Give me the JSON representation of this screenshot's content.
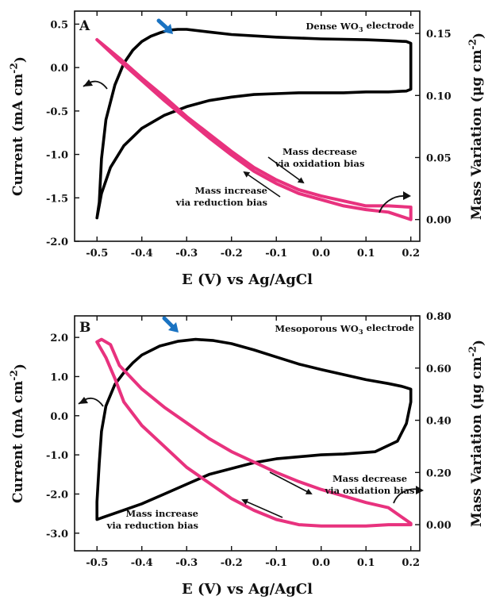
{
  "colors": {
    "current_line": "#000000",
    "mass_line": "#e8327e",
    "marker_arrow": "#1a73c2"
  },
  "chart_data": [
    {
      "type": "line",
      "panel_label": "A",
      "electrode_label": {
        "pre": "Dense WO",
        "sub": "3",
        "post": " electrode"
      },
      "xlabel": "E (V) vs Ag/AgCl",
      "ylabel_left": {
        "pre": "Current (mA cm",
        "sup": "-2",
        "post": ")"
      },
      "ylabel_right": {
        "pre": "Mass Variation (μg cm",
        "sup": "-2",
        "post": ")"
      },
      "xlim": [
        -0.55,
        0.22
      ],
      "ylim_left": [
        -2.0,
        0.65
      ],
      "ylim_right": [
        -0.0175,
        0.168
      ],
      "xticks": [
        -0.5,
        -0.4,
        -0.3,
        -0.2,
        -0.1,
        0.0,
        0.1,
        0.2
      ],
      "xtick_labels": [
        "-0.5",
        "-0.4",
        "-0.3",
        "-0.2",
        "-0.1",
        "0.0",
        "0.1",
        "0.2"
      ],
      "yticks_left": [
        -2.0,
        -1.5,
        -1.0,
        -0.5,
        0.0,
        0.5
      ],
      "ytick_labels_left": [
        "-2.0",
        "-1.5",
        "-1.0",
        "-0.5",
        "0.0",
        "0.5"
      ],
      "yticks_right": [
        0.0,
        0.05,
        0.1,
        0.15
      ],
      "ytick_labels_right": [
        "0.00",
        "0.05",
        "0.10",
        "0.15"
      ],
      "series": [
        {
          "axis": "left",
          "x": [
            -0.5,
            -0.495,
            -0.49,
            -0.48,
            -0.46,
            -0.44,
            -0.42,
            -0.4,
            -0.38,
            -0.36,
            -0.34,
            -0.32,
            -0.3,
            -0.25,
            -0.2,
            -0.1,
            0.0,
            0.1,
            0.15,
            0.19,
            0.2,
            0.2,
            0.19,
            0.15,
            0.1,
            0.05,
            0.0,
            -0.05,
            -0.1,
            -0.15,
            -0.2,
            -0.25,
            -0.3,
            -0.35,
            -0.4,
            -0.44,
            -0.47,
            -0.49,
            -0.5
          ],
          "y": [
            -1.73,
            -1.55,
            -1.05,
            -0.6,
            -0.2,
            0.05,
            0.2,
            0.3,
            0.36,
            0.4,
            0.43,
            0.44,
            0.44,
            0.41,
            0.38,
            0.35,
            0.33,
            0.32,
            0.31,
            0.3,
            0.28,
            -0.25,
            -0.27,
            -0.28,
            -0.28,
            -0.29,
            -0.29,
            -0.29,
            -0.3,
            -0.31,
            -0.34,
            -0.38,
            -0.45,
            -0.55,
            -0.7,
            -0.9,
            -1.15,
            -1.45,
            -1.73
          ]
        },
        {
          "axis": "right",
          "x": [
            -0.5,
            -0.45,
            -0.4,
            -0.35,
            -0.3,
            -0.25,
            -0.2,
            -0.15,
            -0.1,
            -0.05,
            0.0,
            0.05,
            0.1,
            0.15,
            0.2,
            0.2,
            0.15,
            0.1,
            0.05,
            0.0,
            -0.05,
            -0.1,
            -0.15,
            -0.2,
            -0.25,
            -0.3,
            -0.35,
            -0.4,
            -0.45,
            -0.5
          ],
          "y": [
            0.145,
            0.128,
            0.112,
            0.096,
            0.081,
            0.066,
            0.052,
            0.039,
            0.029,
            0.021,
            0.016,
            0.011,
            0.008,
            0.006,
            0.0,
            0.01,
            0.011,
            0.011,
            0.015,
            0.019,
            0.024,
            0.032,
            0.042,
            0.055,
            0.069,
            0.083,
            0.099,
            0.114,
            0.13,
            0.145
          ]
        }
      ],
      "annotations": [
        {
          "lines": [
            "Mass decrease",
            "via oxidation bias"
          ]
        },
        {
          "lines": [
            "Mass increase",
            "via reduction bias"
          ]
        }
      ]
    },
    {
      "type": "line",
      "panel_label": "B",
      "electrode_label": {
        "pre": "Mesoporous WO",
        "sub": "3",
        "post": " electrode"
      },
      "xlabel": "E (V) vs Ag/AgCl",
      "ylabel_left": {
        "pre": "Current (mA cm",
        "sup": "-2",
        "post": ")"
      },
      "ylabel_right": {
        "pre": "Mass Variation (μg cm",
        "sup": "-2",
        "post": ")"
      },
      "xlim": [
        -0.55,
        0.22
      ],
      "ylim_left": [
        -3.45,
        2.55
      ],
      "ylim_right": [
        -0.1,
        0.8
      ],
      "xticks": [
        -0.5,
        -0.4,
        -0.3,
        -0.2,
        -0.1,
        0.0,
        0.1,
        0.2
      ],
      "xtick_labels": [
        "-0.5",
        "-0.4",
        "-0.3",
        "-0.2",
        "-0.1",
        "0.0",
        "0.1",
        "0.2"
      ],
      "yticks_left": [
        -3.0,
        -2.0,
        -1.0,
        0.0,
        1.0,
        2.0
      ],
      "ytick_labels_left": [
        "-3.0",
        "-2.0",
        "-1.0",
        "0.0",
        "1.0",
        "2.0"
      ],
      "yticks_right": [
        0.0,
        0.2,
        0.4,
        0.6,
        0.8
      ],
      "ytick_labels_right": [
        "0.00",
        "0.20",
        "0.40",
        "0.60",
        "0.80"
      ],
      "series": [
        {
          "axis": "left",
          "x": [
            -0.5,
            -0.5,
            -0.495,
            -0.49,
            -0.48,
            -0.46,
            -0.44,
            -0.42,
            -0.4,
            -0.36,
            -0.32,
            -0.28,
            -0.24,
            -0.2,
            -0.15,
            -0.1,
            -0.05,
            0.0,
            0.05,
            0.1,
            0.15,
            0.18,
            0.2,
            0.2,
            0.19,
            0.17,
            0.12,
            0.05,
            0.0,
            -0.05,
            -0.1,
            -0.15,
            -0.2,
            -0.25,
            -0.3,
            -0.35,
            -0.4,
            -0.45,
            -0.5
          ],
          "y": [
            -2.65,
            -2.2,
            -1.2,
            -0.4,
            0.25,
            0.8,
            1.1,
            1.35,
            1.55,
            1.78,
            1.9,
            1.95,
            1.92,
            1.84,
            1.68,
            1.5,
            1.32,
            1.18,
            1.05,
            0.92,
            0.82,
            0.75,
            0.68,
            0.35,
            -0.2,
            -0.65,
            -0.92,
            -0.98,
            -1.0,
            -1.05,
            -1.1,
            -1.2,
            -1.35,
            -1.5,
            -1.75,
            -2.0,
            -2.25,
            -2.45,
            -2.65
          ]
        },
        {
          "axis": "right",
          "x": [
            -0.5,
            -0.49,
            -0.47,
            -0.45,
            -0.4,
            -0.35,
            -0.3,
            -0.25,
            -0.2,
            -0.15,
            -0.1,
            -0.05,
            0.0,
            0.05,
            0.1,
            0.15,
            0.2,
            0.2,
            0.15,
            0.1,
            0.05,
            0.0,
            -0.05,
            -0.1,
            -0.15,
            -0.2,
            -0.25,
            -0.3,
            -0.35,
            -0.4,
            -0.44,
            -0.46,
            -0.48,
            -0.5
          ],
          "y": [
            0.7,
            0.71,
            0.69,
            0.61,
            0.52,
            0.45,
            0.39,
            0.33,
            0.28,
            0.24,
            0.2,
            0.165,
            0.135,
            0.11,
            0.085,
            0.065,
            0.005,
            0.0,
            0.0,
            -0.005,
            -0.005,
            -0.005,
            0.0,
            0.02,
            0.055,
            0.1,
            0.16,
            0.22,
            0.3,
            0.38,
            0.47,
            0.56,
            0.64,
            0.7
          ]
        }
      ],
      "annotations": [
        {
          "lines": [
            "Mass decrease",
            "via oxidation bias"
          ]
        },
        {
          "lines": [
            "Mass increase",
            "via reduction bias"
          ]
        }
      ]
    }
  ]
}
